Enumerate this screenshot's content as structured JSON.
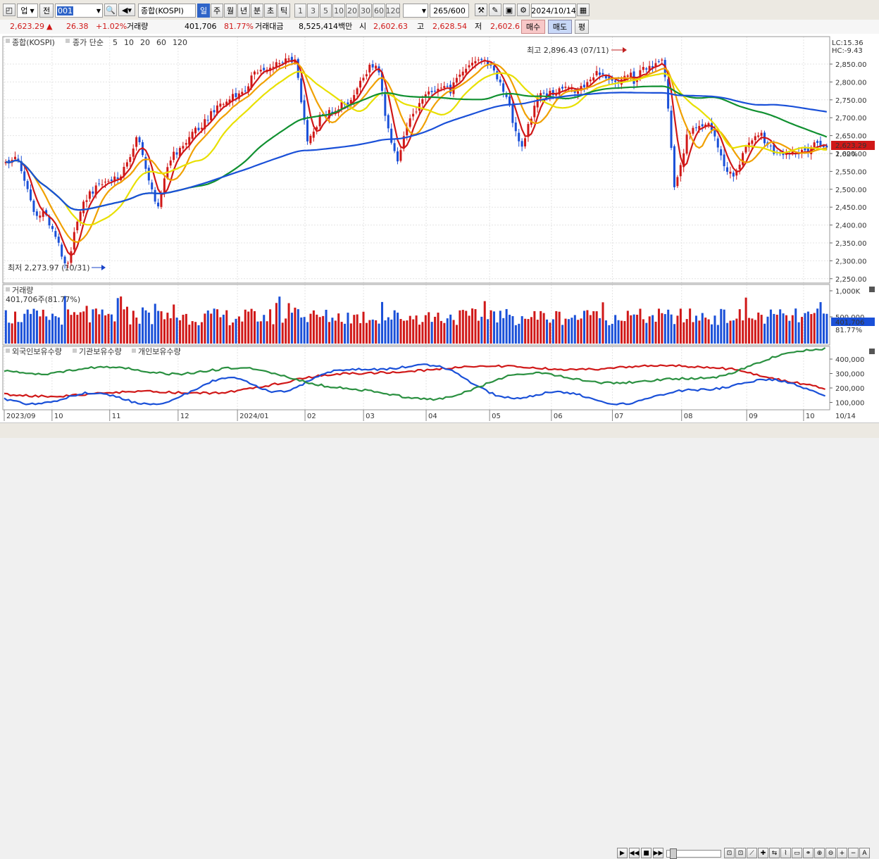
{
  "toolbar": {
    "market": "업",
    "mode": "전",
    "code": "001",
    "name": "종합(KOSPI)",
    "periods": [
      "일",
      "주",
      "월",
      "년",
      "분",
      "초",
      "틱"
    ],
    "selected_period": "일",
    "intervals": [
      "1",
      "3",
      "5",
      "10",
      "20",
      "30",
      "60",
      "120"
    ],
    "count": "265",
    "count_total": "/600",
    "date": "2024/10/14"
  },
  "quote": {
    "price": "2,623.29",
    "arrow": "▲",
    "change": "26.38",
    "change_pct": "+1.02%",
    "volume_label": "거래량",
    "volume": "401,706",
    "volume_pct": "81.77%",
    "amount_label": "거래대금",
    "amount": "8,525,414백만",
    "open_label": "시",
    "open": "2,602.63",
    "high_label": "고",
    "high": "2,628.54",
    "low_label": "저",
    "low": "2,602.6",
    "buy_label": "매수",
    "sell_label": "매도",
    "flat_label": "평"
  },
  "legend": {
    "name": "종합(KOSPI)",
    "ma_label": "종가 단순",
    "ma_periods": [
      "5",
      "10",
      "20",
      "60",
      "120"
    ],
    "ma_colors": [
      "#d01818",
      "#f0a000",
      "#e8e000",
      "#109030",
      "#1a50d8"
    ]
  },
  "annotations": {
    "high": "최고 2,896.43 (07/11)",
    "low": "최저 2,273.97 (10/31)",
    "lc": "LC:15.36",
    "hc": "HC:-9.43",
    "last_price": "2,623.29",
    "last_pct": "1.02%"
  },
  "volume_panel": {
    "title": "거래량",
    "value": "401,706주(81.77%)",
    "last": "401,706",
    "last_pct": "81.77%",
    "axis": [
      "1,000K",
      "500,000"
    ]
  },
  "holding_panel": {
    "series": [
      "외국인보유수량",
      "기관보유수량",
      "개인보유수량"
    ],
    "colors": [
      "#d01818",
      "#1a50d8",
      "#2a9040"
    ],
    "axis": [
      "400,000",
      "300,000",
      "200,000",
      "100,000"
    ]
  },
  "price_axis": [
    "2,850.00",
    "2,800.00",
    "2,750.00",
    "2,700.00",
    "2,650.00",
    "2,600.00",
    "2,550.00",
    "2,500.00",
    "2,450.00",
    "2,400.00",
    "2,350.00",
    "2,300.00",
    "2,250.00"
  ],
  "time_axis": [
    {
      "label": "2023/09",
      "pos": 0.0
    },
    {
      "label": "10",
      "pos": 0.058
    },
    {
      "label": "11",
      "pos": 0.128
    },
    {
      "label": "12",
      "pos": 0.211
    },
    {
      "label": "2024/01",
      "pos": 0.283
    },
    {
      "label": "02",
      "pos": 0.365
    },
    {
      "label": "03",
      "pos": 0.436
    },
    {
      "label": "04",
      "pos": 0.512
    },
    {
      "label": "05",
      "pos": 0.589
    },
    {
      "label": "06",
      "pos": 0.664
    },
    {
      "label": "07",
      "pos": 0.738
    },
    {
      "label": "08",
      "pos": 0.822
    },
    {
      "label": "09",
      "pos": 0.901
    },
    {
      "label": "10",
      "pos": 0.97
    }
  ],
  "end_date": "10/14"
}
